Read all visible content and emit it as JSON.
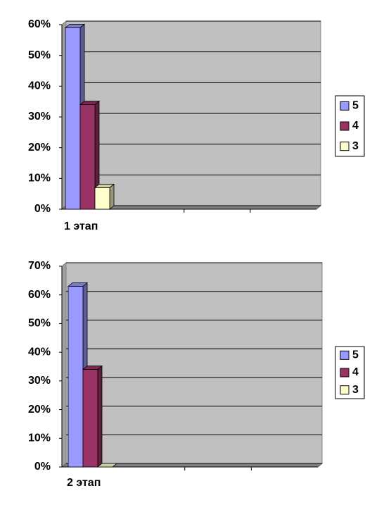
{
  "chart_data": [
    {
      "type": "bar",
      "categories": [
        "1 этап"
      ],
      "series": [
        {
          "name": "5",
          "color": "#9999ff",
          "values": [
            59
          ]
        },
        {
          "name": "4",
          "color": "#993366",
          "values": [
            34
          ]
        },
        {
          "name": "3",
          "color": "#ffffcc",
          "values": [
            7
          ]
        }
      ],
      "ylim": [
        0,
        60
      ],
      "yticks": [
        {
          "value": 0,
          "label": "0%"
        },
        {
          "value": 10,
          "label": "10%"
        },
        {
          "value": 20,
          "label": "20%"
        },
        {
          "value": 30,
          "label": "30%"
        },
        {
          "value": 40,
          "label": "40%"
        },
        {
          "value": 50,
          "label": "50%"
        },
        {
          "value": 60,
          "label": "60%"
        }
      ],
      "grid": true,
      "legend": "right"
    },
    {
      "type": "bar",
      "categories": [
        "2 этап"
      ],
      "series": [
        {
          "name": "5",
          "color": "#9999ff",
          "values": [
            63
          ]
        },
        {
          "name": "4",
          "color": "#993366",
          "values": [
            34
          ]
        },
        {
          "name": "3",
          "color": "#ffffcc",
          "values": [
            0
          ]
        }
      ],
      "ylim": [
        0,
        70
      ],
      "yticks": [
        {
          "value": 0,
          "label": "0%"
        },
        {
          "value": 10,
          "label": "10%"
        },
        {
          "value": 20,
          "label": "20%"
        },
        {
          "value": 30,
          "label": "30%"
        },
        {
          "value": 40,
          "label": "40%"
        },
        {
          "value": 50,
          "label": "50%"
        },
        {
          "value": 60,
          "label": "60%"
        },
        {
          "value": 70,
          "label": "70%"
        }
      ],
      "grid": true,
      "legend": "right"
    }
  ]
}
